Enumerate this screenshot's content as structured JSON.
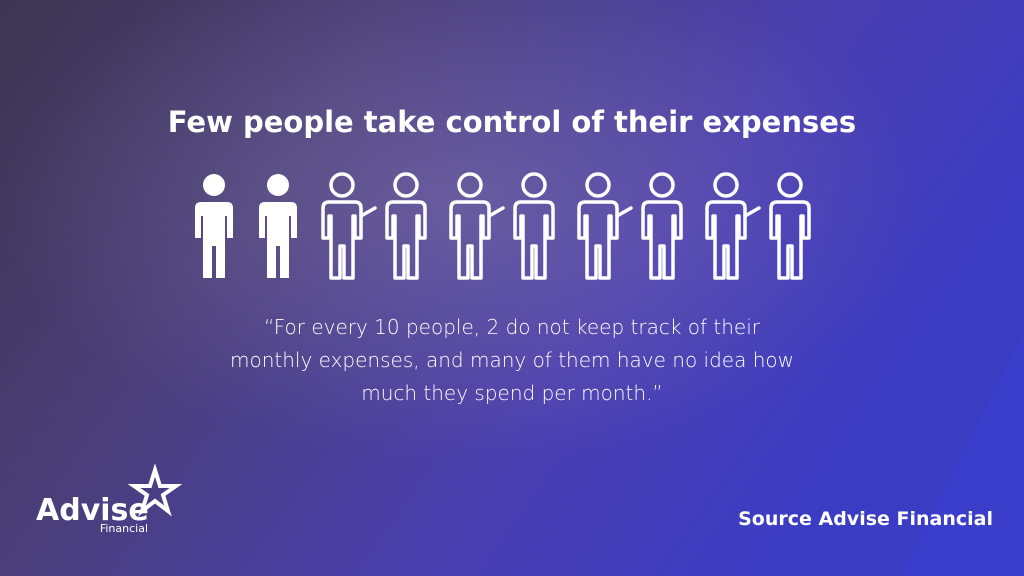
{
  "title": "Few people take control of their expenses",
  "pictogram": {
    "count": 10,
    "highlighted": 2
  },
  "quote": {
    "lines": [
      "“For every 10 people, 2 do not keep track of their",
      "monthly expenses, and many of them have no idea how",
      "much they spend per month.”"
    ]
  },
  "logo": {
    "name": "Advise",
    "subtitle": "Financial"
  },
  "source": "Source Advise Financial"
}
